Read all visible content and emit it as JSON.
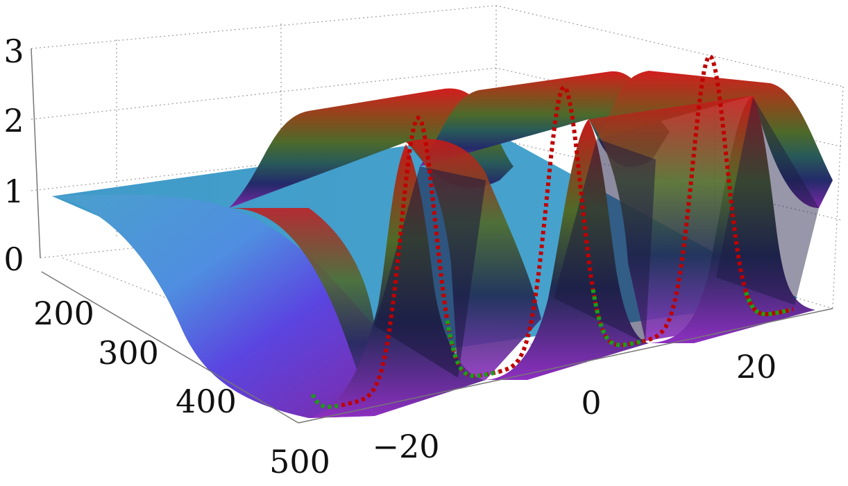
{
  "chart_data": {
    "type": "surface3d",
    "title": "",
    "xlabel": "",
    "ylabel": "",
    "zlabel": "",
    "x_axis": {
      "ticks": [
        -20,
        0,
        20
      ],
      "tick_labels": [
        "−20",
        "0",
        "20"
      ],
      "range": [
        -35,
        35
      ]
    },
    "t_axis": {
      "ticks": [
        200,
        300,
        400,
        500
      ],
      "tick_labels": [
        "200",
        "300",
        "400",
        "500"
      ],
      "range": [
        160,
        500
      ]
    },
    "z_axis": {
      "ticks": [
        0,
        1,
        2,
        3
      ],
      "tick_labels": [
        "0",
        "1",
        "2",
        "3"
      ],
      "range": [
        0,
        3
      ]
    },
    "surface": {
      "description_values": {
        "background_level_at_t_start": 1,
        "peak_height": 2.4,
        "trough_height": 0.05,
        "peak_positions_x": [
          -20,
          0,
          20
        ],
        "period_x": 20
      }
    },
    "series": [
      {
        "style": "dotted",
        "color": "#c00000",
        "x": [
          -30,
          -25,
          -20,
          -15,
          -10,
          -5,
          0,
          5,
          10,
          15,
          20,
          25,
          30
        ],
        "z": [
          0.05,
          0.6,
          2.35,
          0.6,
          0.05,
          0.6,
          2.35,
          0.6,
          0.05,
          0.6,
          2.35,
          0.6,
          0.05
        ]
      },
      {
        "style": "dotted",
        "color": "#1a9e1a",
        "x": [
          -30,
          -26,
          -12,
          -8,
          8,
          12,
          28,
          32
        ],
        "z": [
          0.05,
          0.1,
          0.1,
          0.05,
          0.05,
          0.1,
          0.1,
          0.05
        ]
      }
    ],
    "grid": true,
    "colors": {
      "peak": "#cc1f1a",
      "trough": "#7d2bb5",
      "background_surface": "#4a9ec9",
      "red_curve": "#c00000",
      "green_curve": "#1a9e1a"
    }
  }
}
